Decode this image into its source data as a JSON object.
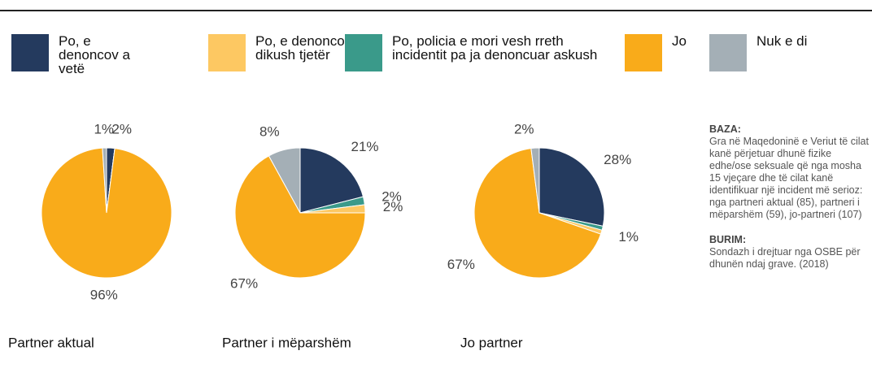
{
  "legend": [
    {
      "name": "Po, e denoncov a vetë",
      "color": "#243a5e"
    },
    {
      "name": "Po, e denoncoi dikush tjetër",
      "color": "#fdc862"
    },
    {
      "name": "Po, policia e mori vesh rreth incidentit pa ja denoncuar askush",
      "color": "#3a9a8a"
    },
    {
      "name": "Jo",
      "color": "#f9ab1a"
    },
    {
      "name": "Nuk e di",
      "color": "#a4afb6"
    }
  ],
  "chart_data": [
    {
      "type": "pie",
      "title": "Partner aktual",
      "values": [
        2,
        0,
        0,
        96,
        1
      ],
      "value_labels": [
        "2%",
        null,
        null,
        "96%",
        "1%"
      ]
    },
    {
      "type": "pie",
      "title": "Partner i mëparshëm",
      "values": [
        21,
        2,
        2,
        67,
        8
      ],
      "value_labels": [
        "21%",
        "2%",
        "2%",
        "67%",
        "8%"
      ]
    },
    {
      "type": "pie",
      "title": "Jo partner",
      "values": [
        28,
        1,
        1,
        67,
        2
      ],
      "value_labels": [
        "28%",
        "1%",
        null,
        "67%",
        "2%"
      ]
    }
  ],
  "note": {
    "base_title": "BAZA:",
    "base_text": "Gra në Maqedoninë e Veriut të cilat kanë përjetuar dhunë fizike edhe/ose seksuale që nga mosha 15 vjeçare dhe të cilat kanë identifikuar një incident më serioz: nga partneri aktual (85), partneri i mëparshëm (59), jo-partneri (107)",
    "source_title": "BURIM:",
    "source_text": "Sondazh i  drejtuar nga OSBE për dhunën ndaj grave. (2018)"
  }
}
